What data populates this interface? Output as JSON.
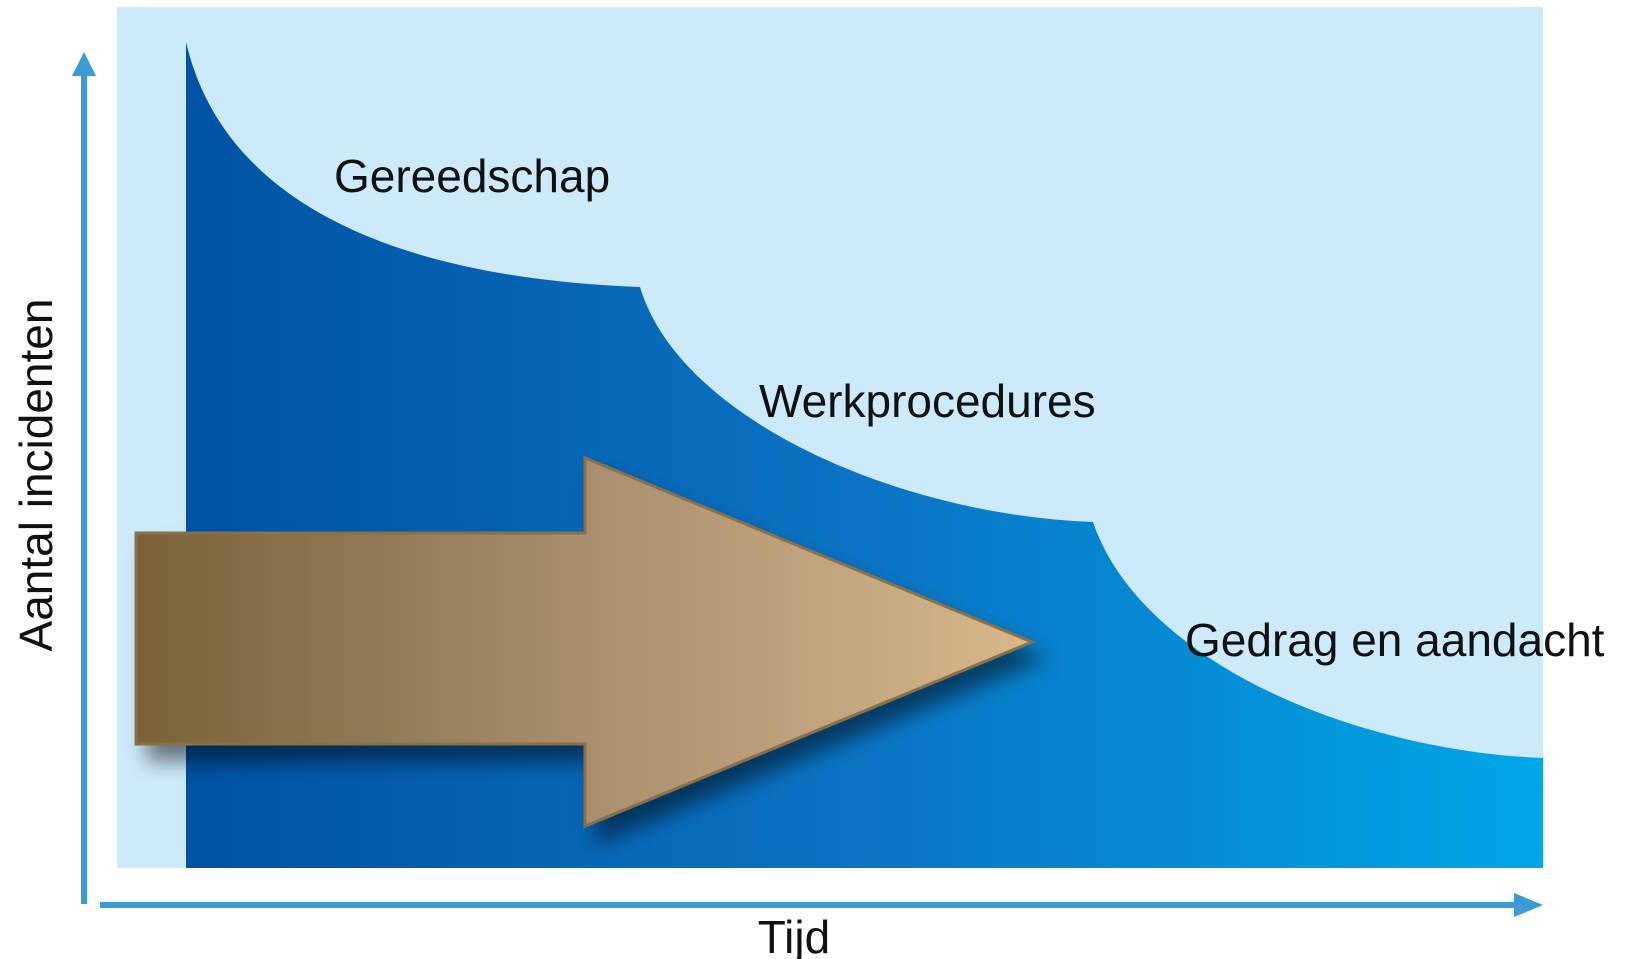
{
  "diagram": {
    "y_axis_label": "Aantal incidenten",
    "x_axis_label": "Tijd",
    "phases": [
      {
        "label": "Gereedschap"
      },
      {
        "label": "Werkprocedures"
      },
      {
        "label": "Gedrag en aandacht"
      }
    ]
  }
}
